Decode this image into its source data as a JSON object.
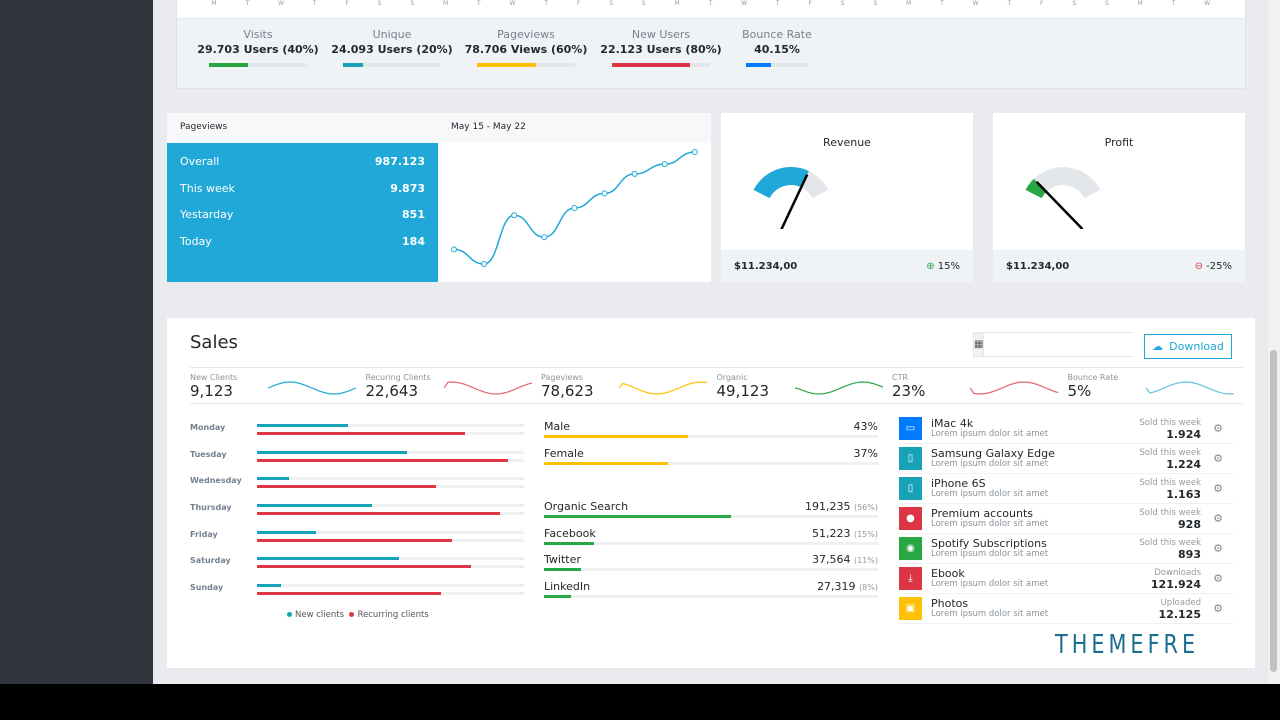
{
  "top": {
    "axis_days": [
      "M",
      "T",
      "W",
      "T",
      "F",
      "S",
      "S",
      "M",
      "T",
      "W",
      "T",
      "F",
      "S",
      "S",
      "M",
      "T",
      "W",
      "T",
      "F",
      "S",
      "S",
      "M",
      "T",
      "W",
      "T",
      "F",
      "S",
      "S",
      "M",
      "T",
      "W"
    ],
    "stats": [
      {
        "label": "Visits",
        "value": "29.703 Users (40%)",
        "percent": 40,
        "color": "#28a745"
      },
      {
        "label": "Unique",
        "value": "24.093 Users (20%)",
        "percent": 20,
        "color": "#17a2b8"
      },
      {
        "label": "Pageviews",
        "value": "78.706 Views (60%)",
        "percent": 60,
        "color": "#ffc107"
      },
      {
        "label": "New Users",
        "value": "22.123 Users (80%)",
        "percent": 80,
        "color": "#dc3545"
      },
      {
        "label": "Bounce Rate",
        "value": "40.15%",
        "percent": 40,
        "color": "#007bff"
      }
    ]
  },
  "pageviews": {
    "title": "Pageviews",
    "range": "May 15 - May 22",
    "rows": [
      {
        "label": "Overall",
        "value": "987.123"
      },
      {
        "label": "This week",
        "value": "9.873"
      },
      {
        "label": "Yestarday",
        "value": "851"
      },
      {
        "label": "Today",
        "value": "184"
      }
    ]
  },
  "chart_data": {
    "type": "line",
    "values": [
      10,
      4,
      24,
      15,
      27,
      33,
      41,
      45,
      50
    ],
    "color": "#20a8d8"
  },
  "revenue": {
    "title": "Revenue",
    "amount": "$11.234,00",
    "change": "15%",
    "gauge_percent": 70,
    "color": "#20a8d8",
    "change_icon": "arrow-up-circle-icon"
  },
  "profit": {
    "title": "Profit",
    "amount": "$11.234,00",
    "change": "-25%",
    "gauge_percent": 15,
    "color": "#28a745",
    "change_icon": "arrow-down-circle-icon"
  },
  "sales": {
    "title": "Sales",
    "download": "Download",
    "date_value": "",
    "kpis": [
      {
        "label": "New Clients",
        "value": "9,123",
        "color": "#20a8d8"
      },
      {
        "label": "Recuring Clients",
        "value": "22,643",
        "color": "#e0646e"
      },
      {
        "label": "Pageviews",
        "value": "78,623",
        "color": "#ffc107"
      },
      {
        "label": "Organic",
        "value": "49,123",
        "color": "#28a745"
      },
      {
        "label": "CTR",
        "value": "23%",
        "color": "#e0646e"
      },
      {
        "label": "Bounce Rate",
        "value": "5%",
        "color": "#63c2de"
      }
    ],
    "days": [
      {
        "day": "Monday",
        "new": 34,
        "rec": 78
      },
      {
        "day": "Tuesday",
        "new": 56,
        "rec": 94
      },
      {
        "day": "Wednesday",
        "new": 12,
        "rec": 67
      },
      {
        "day": "Thursday",
        "new": 43,
        "rec": 91
      },
      {
        "day": "Friday",
        "new": 22,
        "rec": 73
      },
      {
        "day": "Saturday",
        "new": 53,
        "rec": 80
      },
      {
        "day": "Sunday",
        "new": 9,
        "rec": 69
      }
    ],
    "legend": {
      "new": "New clients",
      "rec": "Recurring clients"
    },
    "gender": [
      {
        "label": "Male",
        "value": "43%",
        "percent": 43
      },
      {
        "label": "Female",
        "value": "37%",
        "percent": 37
      }
    ],
    "sources": [
      {
        "label": "Organic Search",
        "value": "191,235",
        "pct": "(56%)",
        "percent": 56
      },
      {
        "label": "Facebook",
        "value": "51,223",
        "pct": "(15%)",
        "percent": 15
      },
      {
        "label": "Twitter",
        "value": "37,564",
        "pct": "(11%)",
        "percent": 11
      },
      {
        "label": "LinkedIn",
        "value": "27,319",
        "pct": "(8%)",
        "percent": 8
      }
    ],
    "products": [
      {
        "name": "iMac 4k",
        "desc": "Lorem ipsum dolor sit amet",
        "metric": "Sold this week",
        "value": "1.924",
        "color": "#007bff",
        "icon": "desktop-icon",
        "glyph": "▭"
      },
      {
        "name": "Samsung Galaxy Edge",
        "desc": "Lorem ipsum dolor sit amet",
        "metric": "Sold this week",
        "value": "1.224",
        "color": "#17a2b8",
        "icon": "mobile-icon",
        "glyph": "▯"
      },
      {
        "name": "iPhone 6S",
        "desc": "Lorem ipsum dolor sit amet",
        "metric": "Sold this week",
        "value": "1.163",
        "color": "#17a2b8",
        "icon": "mobile-icon",
        "glyph": "▯"
      },
      {
        "name": "Premium accounts",
        "desc": "Lorem ipsum dolor sit amet",
        "metric": "Sold this week",
        "value": "928",
        "color": "#dc3545",
        "icon": "user-icon",
        "glyph": "●"
      },
      {
        "name": "Spotify Subscriptions",
        "desc": "Lorem ipsum dolor sit amet",
        "metric": "Sold this week",
        "value": "893",
        "color": "#28a745",
        "icon": "spotify-icon",
        "glyph": "◉"
      },
      {
        "name": "Ebook",
        "desc": "Lorem ipsum dolor sit amet",
        "metric": "Downloads",
        "value": "121.924",
        "color": "#dc3545",
        "icon": "download-icon",
        "glyph": "⤓"
      },
      {
        "name": "Photos",
        "desc": "Lorem ipsum dolor sit amet",
        "metric": "Uploaded",
        "value": "12.125",
        "color": "#ffc107",
        "icon": "picture-icon",
        "glyph": "▣"
      }
    ]
  },
  "watermark": "THEMEFREE"
}
